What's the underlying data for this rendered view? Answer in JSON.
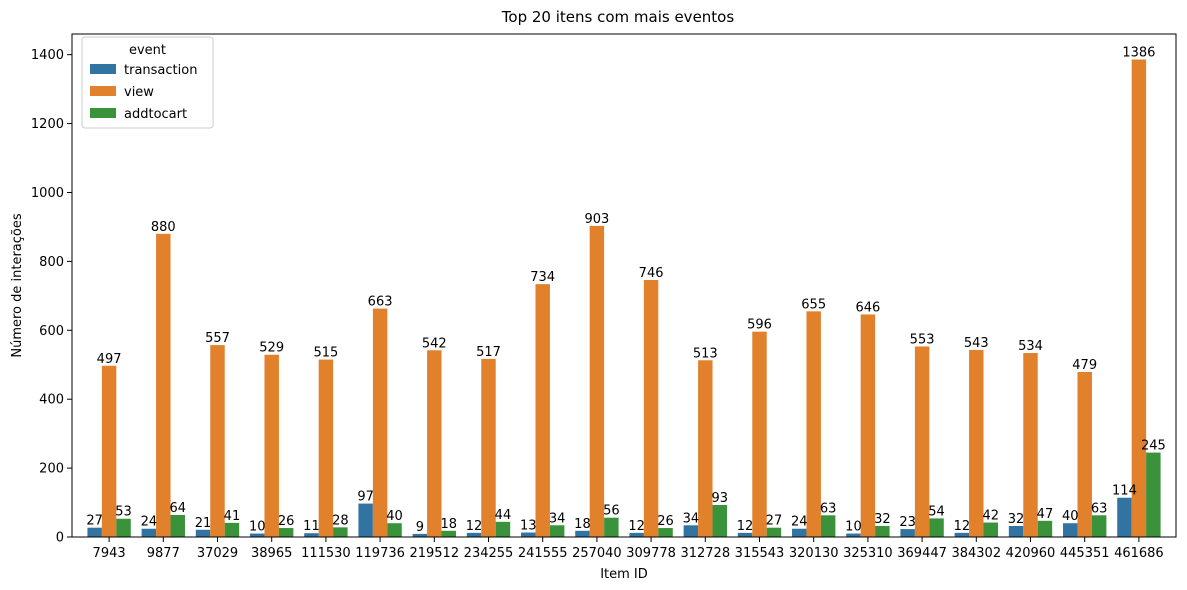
{
  "chart_data": {
    "type": "bar",
    "title": "Top 20 itens com mais eventos",
    "xlabel": "Item ID",
    "ylabel": "Número de interações",
    "ylim": [
      0,
      1460
    ],
    "yticks": [
      0,
      200,
      400,
      600,
      800,
      1000,
      1200,
      1400
    ],
    "grid": false,
    "legend": {
      "title": "event",
      "placement": "top-left"
    },
    "categories": [
      "7943",
      "9877",
      "37029",
      "38965",
      "111530",
      "119736",
      "219512",
      "234255",
      "241555",
      "257040",
      "309778",
      "312728",
      "315543",
      "320130",
      "325310",
      "369447",
      "384302",
      "420960",
      "445351",
      "461686"
    ],
    "series": [
      {
        "name": "transaction",
        "color": "#3274a1",
        "values": [
          27,
          24,
          21,
          10,
          11,
          97,
          9,
          12,
          13,
          18,
          12,
          34,
          12,
          24,
          10,
          23,
          12,
          32,
          40,
          114
        ]
      },
      {
        "name": "view",
        "color": "#e1812c",
        "values": [
          497,
          880,
          557,
          529,
          515,
          663,
          542,
          517,
          734,
          903,
          746,
          513,
          596,
          655,
          646,
          553,
          543,
          534,
          479,
          1386
        ]
      },
      {
        "name": "addtocart",
        "color": "#3a923a",
        "values": [
          53,
          64,
          41,
          26,
          28,
          40,
          18,
          44,
          34,
          56,
          26,
          93,
          27,
          63,
          32,
          54,
          42,
          47,
          63,
          245
        ]
      }
    ]
  }
}
